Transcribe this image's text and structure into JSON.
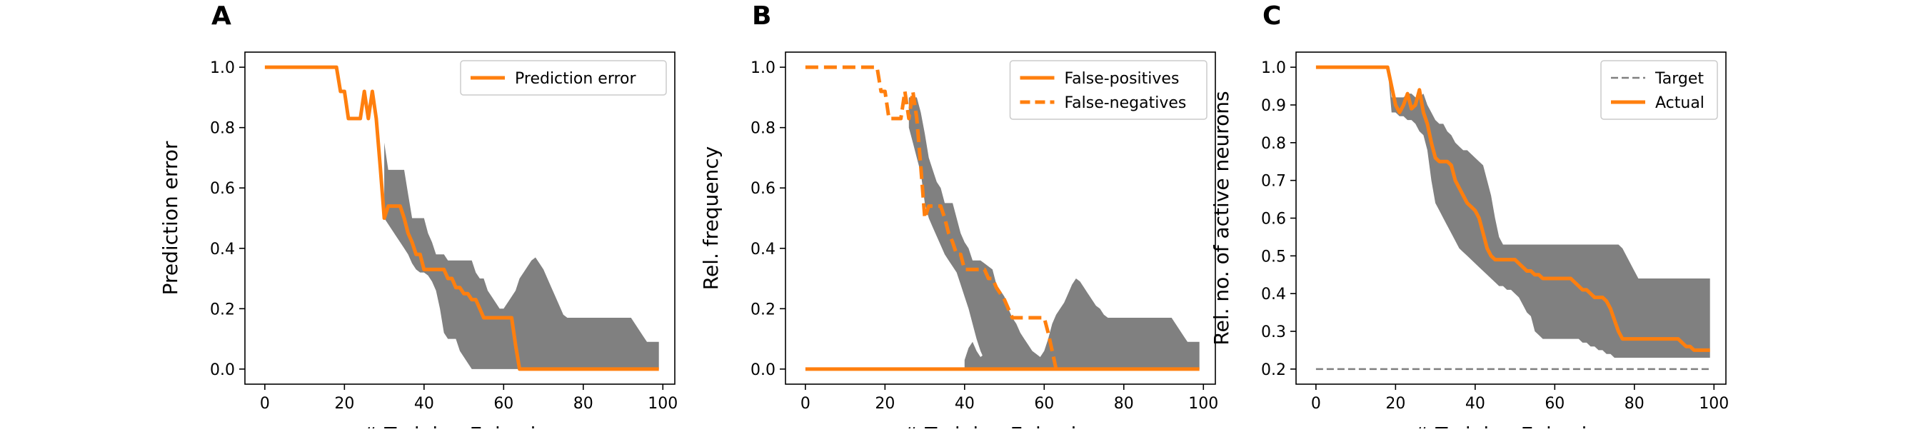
{
  "colors": {
    "actual": "#ff7f0e",
    "band": "#808080",
    "target": "#808080"
  },
  "chart_data": [
    {
      "panel": "A",
      "type": "line",
      "xlabel": "# Training Episodes",
      "ylabel": "Prediction error",
      "xlim": [
        -5,
        103
      ],
      "ylim": [
        -0.05,
        1.05
      ],
      "xticks": [
        "0",
        "20",
        "40",
        "60",
        "80",
        "100"
      ],
      "yticks": [
        "0.0",
        "0.2",
        "0.4",
        "0.6",
        "0.8",
        "1.0"
      ],
      "legend_position": "top-right",
      "band": {
        "x": [
          30,
          31,
          32,
          33,
          34,
          35,
          36,
          37,
          38,
          39,
          40,
          41,
          42,
          43,
          44,
          45,
          46,
          47,
          48,
          49,
          50,
          51,
          52,
          53,
          54,
          55,
          56,
          57,
          58,
          59,
          60,
          61,
          62,
          63,
          64,
          65,
          66,
          67,
          68,
          69,
          70,
          71,
          72,
          73,
          74,
          75,
          76,
          77,
          78,
          79,
          80,
          81,
          82,
          83,
          84,
          85,
          86,
          87,
          88,
          89,
          90,
          91,
          92,
          93,
          94,
          95,
          96,
          97,
          98,
          99
        ],
        "upper": [
          0.75,
          0.66,
          0.66,
          0.66,
          0.66,
          0.66,
          0.58,
          0.5,
          0.5,
          0.5,
          0.5,
          0.45,
          0.42,
          0.38,
          0.38,
          0.38,
          0.36,
          0.36,
          0.36,
          0.36,
          0.36,
          0.36,
          0.36,
          0.32,
          0.3,
          0.3,
          0.26,
          0.24,
          0.22,
          0.2,
          0.2,
          0.22,
          0.24,
          0.26,
          0.3,
          0.32,
          0.34,
          0.36,
          0.37,
          0.35,
          0.33,
          0.3,
          0.27,
          0.24,
          0.21,
          0.18,
          0.17,
          0.17,
          0.17,
          0.17,
          0.17,
          0.17,
          0.17,
          0.17,
          0.17,
          0.17,
          0.17,
          0.17,
          0.17,
          0.17,
          0.17,
          0.17,
          0.17,
          0.15,
          0.13,
          0.11,
          0.09,
          0.09,
          0.09,
          0.09
        ],
        "lower": [
          0.5,
          0.48,
          0.46,
          0.44,
          0.42,
          0.4,
          0.38,
          0.35,
          0.33,
          0.32,
          0.32,
          0.31,
          0.29,
          0.26,
          0.2,
          0.12,
          0.1,
          0.1,
          0.1,
          0.06,
          0.04,
          0.02,
          0.0,
          0.0,
          0.0,
          0.0,
          0.0,
          0.0,
          0.0,
          0.0,
          0.0,
          0.0,
          0.0,
          0.0,
          0.0,
          0.0,
          0.0,
          0.0,
          0.0,
          0.0,
          0.0,
          0.0,
          0.0,
          0.0,
          0.0,
          0.0,
          0.0,
          0.0,
          0.0,
          0.0,
          0.0,
          0.0,
          0.0,
          0.0,
          0.0,
          0.0,
          0.0,
          0.0,
          0.0,
          0.0,
          0.0,
          0.0,
          0.0,
          0.0,
          0.0,
          0.0,
          0.0,
          0.0,
          0.0,
          0.0
        ]
      },
      "series": [
        {
          "name": "Prediction error",
          "style": "solid",
          "x": [
            0,
            18,
            19,
            20,
            21,
            22,
            23,
            24,
            25,
            26,
            27,
            28,
            29,
            30,
            31,
            32,
            33,
            34,
            35,
            36,
            37,
            38,
            39,
            40,
            41,
            42,
            43,
            44,
            45,
            46,
            47,
            48,
            49,
            50,
            51,
            52,
            53,
            54,
            55,
            56,
            57,
            58,
            59,
            60,
            61,
            62,
            63,
            64,
            99
          ],
          "y": [
            1.0,
            1.0,
            0.92,
            0.92,
            0.83,
            0.83,
            0.83,
            0.83,
            0.92,
            0.83,
            0.92,
            0.83,
            0.67,
            0.5,
            0.54,
            0.54,
            0.54,
            0.54,
            0.5,
            0.45,
            0.42,
            0.38,
            0.38,
            0.33,
            0.33,
            0.33,
            0.33,
            0.33,
            0.33,
            0.3,
            0.3,
            0.27,
            0.27,
            0.25,
            0.25,
            0.23,
            0.23,
            0.2,
            0.17,
            0.17,
            0.17,
            0.17,
            0.17,
            0.17,
            0.17,
            0.17,
            0.08,
            0.0,
            0.0
          ]
        }
      ]
    },
    {
      "panel": "B",
      "type": "line",
      "xlabel": "# Training Episodes",
      "ylabel": "Rel. frequency",
      "xlim": [
        -5,
        103
      ],
      "ylim": [
        -0.05,
        1.05
      ],
      "xticks": [
        "0",
        "20",
        "40",
        "60",
        "80",
        "100"
      ],
      "yticks": [
        "0.0",
        "0.2",
        "0.4",
        "0.6",
        "0.8",
        "1.0"
      ],
      "legend_position": "top-right",
      "band": {
        "x": [
          26,
          27,
          28,
          29,
          30,
          31,
          32,
          33,
          34,
          35,
          36,
          37,
          38,
          39,
          40,
          41,
          42,
          43,
          44,
          45,
          46,
          47,
          48,
          49,
          50,
          51,
          52,
          53,
          54,
          55,
          56,
          57,
          58,
          59,
          60,
          61,
          62,
          63,
          64,
          65,
          66,
          67,
          68,
          69,
          70,
          71,
          72,
          73,
          74,
          75,
          76,
          77,
          78,
          79,
          80,
          81,
          82,
          83,
          84,
          85,
          86,
          87,
          88,
          89,
          90,
          91,
          92,
          93,
          94,
          95,
          96,
          97,
          98,
          99
        ],
        "upper": [
          0.9,
          0.9,
          0.9,
          0.85,
          0.78,
          0.7,
          0.66,
          0.62,
          0.6,
          0.55,
          0.55,
          0.55,
          0.5,
          0.45,
          0.42,
          0.4,
          0.36,
          0.36,
          0.36,
          0.35,
          0.34,
          0.33,
          0.28,
          0.26,
          0.24,
          0.2,
          0.17,
          0.15,
          0.12,
          0.1,
          0.08,
          0.06,
          0.05,
          0.04,
          0.06,
          0.1,
          0.15,
          0.18,
          0.2,
          0.22,
          0.25,
          0.28,
          0.3,
          0.29,
          0.27,
          0.25,
          0.23,
          0.21,
          0.2,
          0.18,
          0.17,
          0.17,
          0.17,
          0.17,
          0.17,
          0.17,
          0.17,
          0.17,
          0.17,
          0.17,
          0.17,
          0.17,
          0.17,
          0.17,
          0.17,
          0.17,
          0.17,
          0.15,
          0.13,
          0.11,
          0.09,
          0.09,
          0.09,
          0.09
        ],
        "lower": [
          0.8,
          0.75,
          0.7,
          0.65,
          0.55,
          0.5,
          0.47,
          0.44,
          0.41,
          0.38,
          0.36,
          0.34,
          0.32,
          0.28,
          0.24,
          0.2,
          0.15,
          0.1,
          0.06,
          0.03,
          0.01,
          0.0,
          0.0,
          0.0,
          0.0,
          0.0,
          0.0,
          0.0,
          0.0,
          0.0,
          0.0,
          0.0,
          0.0,
          0.0,
          0.0,
          0.0,
          0.0,
          0.0,
          0.0,
          0.0,
          0.0,
          0.0,
          0.0,
          0.0,
          0.0,
          0.0,
          0.0,
          0.0,
          0.0,
          0.0,
          0.0,
          0.0,
          0.0,
          0.0,
          0.0,
          0.0,
          0.0,
          0.0,
          0.0,
          0.0,
          0.0,
          0.0,
          0.0,
          0.0,
          0.0,
          0.0,
          0.0,
          0.0,
          0.0,
          0.0,
          0.0,
          0.0,
          0.0,
          0.0
        ]
      },
      "band2": {
        "x": [
          40,
          41,
          42,
          43,
          44,
          45,
          46,
          47,
          48
        ],
        "upper": [
          0.03,
          0.07,
          0.09,
          0.06,
          0.04,
          0.05,
          0.08,
          0.1,
          0.12
        ],
        "lower": [
          0.0,
          0.0,
          0.0,
          0.0,
          0.0,
          0.0,
          0.0,
          0.0,
          0.0
        ]
      },
      "series": [
        {
          "name": "False-positives",
          "style": "solid",
          "x": [
            0,
            99
          ],
          "y": [
            0.0,
            0.0
          ]
        },
        {
          "name": "False-negatives",
          "style": "dashed",
          "x": [
            0,
            18,
            19,
            20,
            21,
            22,
            23,
            24,
            25,
            26,
            27,
            28,
            29,
            30,
            31,
            32,
            33,
            34,
            35,
            36,
            37,
            38,
            39,
            40,
            41,
            42,
            43,
            44,
            45,
            46,
            47,
            48,
            49,
            50,
            51,
            52,
            53,
            54,
            55,
            56,
            57,
            58,
            59,
            60,
            61,
            62,
            63
          ],
          "y": [
            1.0,
            1.0,
            0.92,
            0.92,
            0.83,
            0.83,
            0.83,
            0.83,
            0.92,
            0.83,
            0.92,
            0.83,
            0.67,
            0.5,
            0.54,
            0.54,
            0.54,
            0.54,
            0.5,
            0.45,
            0.42,
            0.38,
            0.38,
            0.33,
            0.33,
            0.33,
            0.33,
            0.33,
            0.33,
            0.3,
            0.3,
            0.27,
            0.25,
            0.23,
            0.2,
            0.17,
            0.17,
            0.17,
            0.17,
            0.17,
            0.17,
            0.17,
            0.17,
            0.17,
            0.12,
            0.06,
            0.0
          ]
        }
      ]
    },
    {
      "panel": "C",
      "type": "line",
      "xlabel": "# Training Episodes",
      "ylabel": "Rel. no. of active neurons",
      "xlim": [
        -5,
        103
      ],
      "ylim": [
        0.16,
        1.04
      ],
      "xticks": [
        "0",
        "20",
        "40",
        "60",
        "80",
        "100"
      ],
      "yticks": [
        "0.2",
        "0.3",
        "0.4",
        "0.5",
        "0.6",
        "0.7",
        "0.8",
        "0.9",
        "1.0"
      ],
      "legend_position": "top-right",
      "band": {
        "x": [
          18,
          19,
          20,
          21,
          22,
          23,
          24,
          25,
          26,
          27,
          28,
          29,
          30,
          31,
          32,
          33,
          34,
          35,
          36,
          37,
          38,
          39,
          40,
          41,
          42,
          43,
          44,
          45,
          46,
          47,
          48,
          49,
          50,
          51,
          52,
          53,
          54,
          55,
          56,
          57,
          58,
          59,
          60,
          61,
          62,
          63,
          64,
          65,
          66,
          67,
          68,
          69,
          70,
          71,
          72,
          73,
          74,
          75,
          76,
          77,
          78,
          79,
          80,
          81,
          82,
          83,
          84,
          85,
          86,
          87,
          88,
          89,
          90,
          91,
          92,
          93,
          94,
          95,
          96,
          97,
          98,
          99
        ],
        "upper": [
          1.0,
          0.92,
          0.92,
          0.92,
          0.92,
          0.93,
          0.93,
          0.92,
          0.92,
          0.93,
          0.9,
          0.88,
          0.86,
          0.85,
          0.85,
          0.83,
          0.82,
          0.8,
          0.79,
          0.78,
          0.78,
          0.77,
          0.76,
          0.75,
          0.74,
          0.7,
          0.66,
          0.6,
          0.55,
          0.53,
          0.53,
          0.53,
          0.53,
          0.53,
          0.53,
          0.53,
          0.53,
          0.53,
          0.53,
          0.53,
          0.53,
          0.53,
          0.53,
          0.53,
          0.53,
          0.53,
          0.53,
          0.53,
          0.53,
          0.53,
          0.53,
          0.53,
          0.53,
          0.53,
          0.53,
          0.53,
          0.53,
          0.53,
          0.53,
          0.52,
          0.5,
          0.48,
          0.46,
          0.44,
          0.44,
          0.44,
          0.44,
          0.44,
          0.44,
          0.44,
          0.44,
          0.44,
          0.44,
          0.44,
          0.44,
          0.44,
          0.44,
          0.44,
          0.44,
          0.44,
          0.44,
          0.44
        ],
        "lower": [
          1.0,
          0.88,
          0.88,
          0.87,
          0.87,
          0.86,
          0.86,
          0.85,
          0.83,
          0.82,
          0.78,
          0.7,
          0.64,
          0.62,
          0.6,
          0.58,
          0.56,
          0.54,
          0.52,
          0.51,
          0.5,
          0.49,
          0.48,
          0.47,
          0.46,
          0.45,
          0.44,
          0.43,
          0.42,
          0.42,
          0.41,
          0.41,
          0.4,
          0.39,
          0.37,
          0.35,
          0.34,
          0.3,
          0.29,
          0.28,
          0.28,
          0.28,
          0.28,
          0.28,
          0.28,
          0.28,
          0.28,
          0.28,
          0.28,
          0.27,
          0.27,
          0.26,
          0.26,
          0.25,
          0.25,
          0.24,
          0.24,
          0.23,
          0.23,
          0.23,
          0.23,
          0.23,
          0.23,
          0.23,
          0.23,
          0.23,
          0.23,
          0.23,
          0.23,
          0.23,
          0.23,
          0.23,
          0.23,
          0.23,
          0.23,
          0.23,
          0.23,
          0.23,
          0.23,
          0.23,
          0.23,
          0.23
        ]
      },
      "series": [
        {
          "name": "Target",
          "style": "dashed-thin",
          "x": [
            0,
            99
          ],
          "y": [
            0.2,
            0.2
          ]
        },
        {
          "name": "Actual",
          "style": "solid",
          "x": [
            0,
            18,
            19,
            20,
            21,
            22,
            23,
            24,
            25,
            26,
            27,
            28,
            29,
            30,
            31,
            32,
            33,
            34,
            35,
            36,
            37,
            38,
            39,
            40,
            41,
            42,
            43,
            44,
            45,
            46,
            47,
            48,
            49,
            50,
            51,
            52,
            53,
            54,
            55,
            56,
            57,
            58,
            59,
            60,
            61,
            62,
            63,
            64,
            65,
            66,
            67,
            68,
            69,
            70,
            71,
            72,
            73,
            74,
            75,
            76,
            77,
            78,
            79,
            80,
            81,
            82,
            83,
            84,
            85,
            86,
            87,
            88,
            89,
            90,
            91,
            92,
            93,
            94,
            95,
            96,
            97,
            98,
            99
          ],
          "y": [
            1.0,
            1.0,
            0.95,
            0.9,
            0.88,
            0.9,
            0.93,
            0.89,
            0.9,
            0.94,
            0.88,
            0.85,
            0.8,
            0.76,
            0.75,
            0.75,
            0.75,
            0.74,
            0.7,
            0.68,
            0.66,
            0.64,
            0.63,
            0.62,
            0.6,
            0.56,
            0.52,
            0.5,
            0.49,
            0.49,
            0.49,
            0.49,
            0.49,
            0.49,
            0.48,
            0.47,
            0.46,
            0.46,
            0.45,
            0.45,
            0.44,
            0.44,
            0.44,
            0.44,
            0.44,
            0.44,
            0.44,
            0.44,
            0.43,
            0.42,
            0.41,
            0.41,
            0.4,
            0.39,
            0.39,
            0.39,
            0.38,
            0.36,
            0.33,
            0.3,
            0.28,
            0.28,
            0.28,
            0.28,
            0.28,
            0.28,
            0.28,
            0.28,
            0.28,
            0.28,
            0.28,
            0.28,
            0.28,
            0.28,
            0.28,
            0.27,
            0.26,
            0.26,
            0.25,
            0.25,
            0.25,
            0.25,
            0.25
          ]
        }
      ]
    }
  ]
}
